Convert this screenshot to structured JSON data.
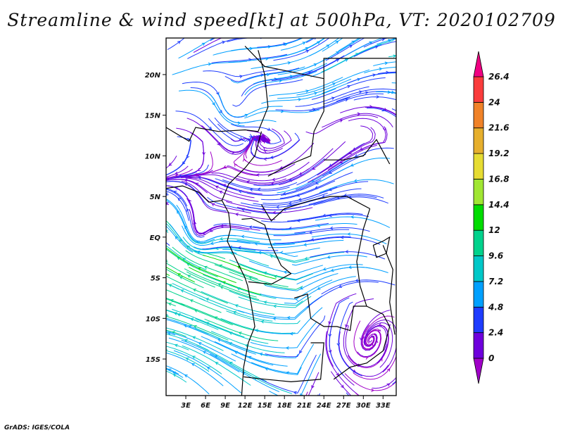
{
  "title": "Streamline & wind speed[kt] at 500hPa, VT: 2020102709",
  "credit": "GrADS: IGES/COLA",
  "map": {
    "region": "Central Africa",
    "lon_range": [
      0,
      35
    ],
    "lat_range": [
      -19.5,
      24.5
    ],
    "lon_ticks": [
      {
        "value": 3,
        "label": "3E"
      },
      {
        "value": 6,
        "label": "6E"
      },
      {
        "value": 9,
        "label": "9E"
      },
      {
        "value": 12,
        "label": "12E"
      },
      {
        "value": 15,
        "label": "15E"
      },
      {
        "value": 18,
        "label": "18E"
      },
      {
        "value": 21,
        "label": "21E"
      },
      {
        "value": 24,
        "label": "24E"
      },
      {
        "value": 27,
        "label": "27E"
      },
      {
        "value": 30,
        "label": "30E"
      },
      {
        "value": 33,
        "label": "33E"
      }
    ],
    "lat_ticks": [
      {
        "value": 20,
        "label": "20N"
      },
      {
        "value": 15,
        "label": "15N"
      },
      {
        "value": 10,
        "label": "10N"
      },
      {
        "value": 5,
        "label": "5N"
      },
      {
        "value": 0,
        "label": "EQ"
      },
      {
        "value": -5,
        "label": "5S"
      },
      {
        "value": -10,
        "label": "10S"
      },
      {
        "value": -15,
        "label": "15S"
      }
    ]
  },
  "colorbar": {
    "unit": "kt",
    "levels": [
      "0",
      "2.4",
      "4.8",
      "7.2",
      "9.6",
      "12",
      "14.4",
      "16.8",
      "19.2",
      "21.6",
      "24",
      "26.4"
    ],
    "colors": [
      "#a000c8",
      "#6e00dc",
      "#1e3cff",
      "#00a0ff",
      "#00c8c8",
      "#00d28c",
      "#00dc00",
      "#a0e632",
      "#e6dc32",
      "#e6af2d",
      "#f08228",
      "#fa3c3c",
      "#f00082"
    ]
  },
  "colors": {
    "coast": "#000000",
    "frame": "#000000"
  }
}
